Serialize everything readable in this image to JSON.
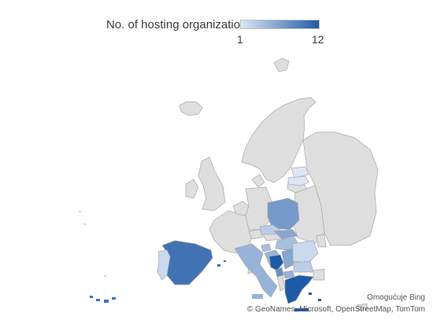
{
  "legend": {
    "title": "No. of hosting organizations",
    "min_label": "1",
    "max_label": "12",
    "min_value": 1,
    "max_value": 12,
    "color_low": "#dce6f5",
    "color_high": "#1f5aa6"
  },
  "map_data": {
    "metric": "No. of hosting organizations",
    "no_data_color": "#dedede",
    "border_color": "#a8a8a8",
    "regions": [
      {
        "name": "Spain",
        "value": 10
      },
      {
        "name": "Portugal",
        "value": 2
      },
      {
        "name": "Greece",
        "value": 12
      },
      {
        "name": "Poland",
        "value": 7
      },
      {
        "name": "Italy",
        "value": 5
      },
      {
        "name": "Bosnia and Herzegovina",
        "value": 12
      },
      {
        "name": "Croatia",
        "value": 5
      },
      {
        "name": "Slovakia",
        "value": 6
      },
      {
        "name": "Hungary",
        "value": 4
      },
      {
        "name": "Serbia",
        "value": 6
      },
      {
        "name": "Montenegro",
        "value": 8
      },
      {
        "name": "North Macedonia",
        "value": 5
      },
      {
        "name": "Bulgaria",
        "value": 3
      },
      {
        "name": "Romania",
        "value": 2
      },
      {
        "name": "Czechia",
        "value": 3
      },
      {
        "name": "Slovenia",
        "value": 4
      },
      {
        "name": "Estonia",
        "value": 1
      },
      {
        "name": "Latvia",
        "value": 1
      }
    ]
  },
  "attribution": {
    "line1": "Omogućuje Bing",
    "line2": "© GeoNames, Microsoft, OpenStreetMap, TomTom"
  }
}
